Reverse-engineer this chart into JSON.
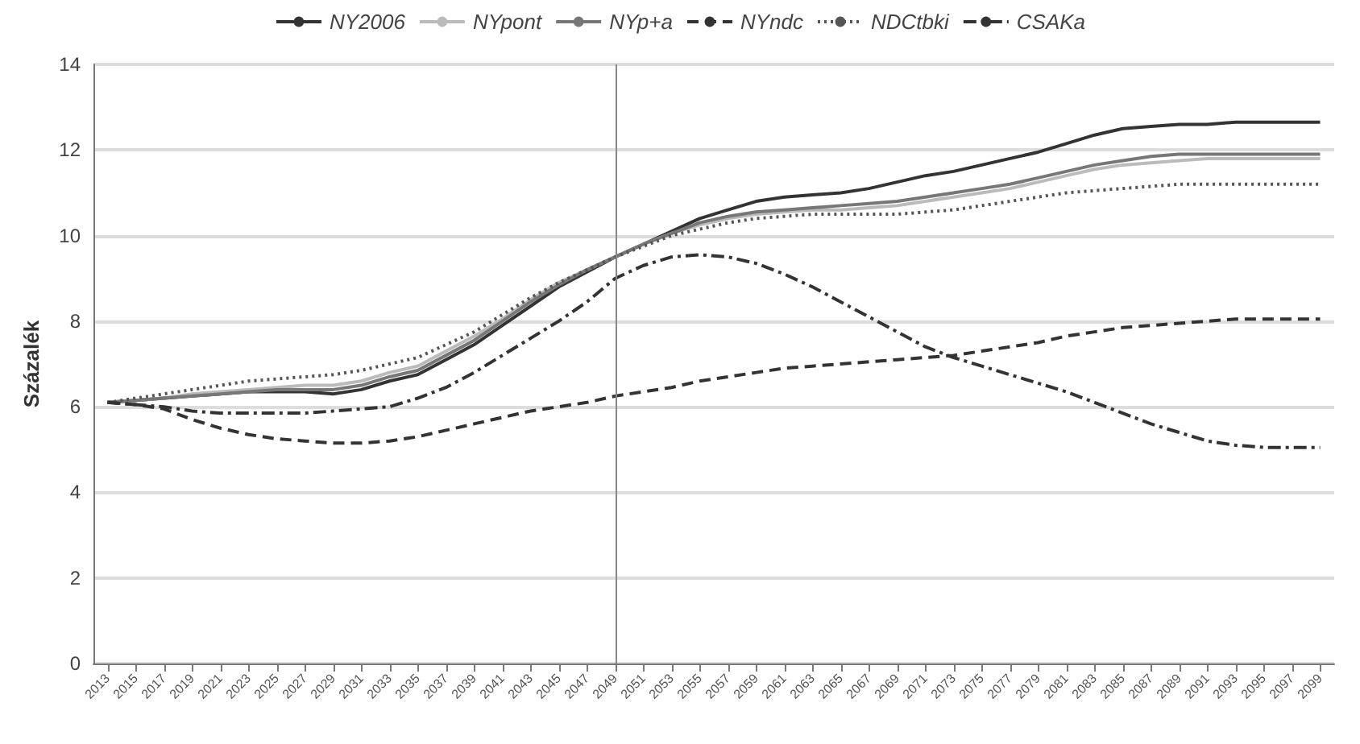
{
  "chart_data": {
    "type": "line",
    "ylabel": "Százalék",
    "ylim": [
      0,
      14
    ],
    "yticks": [
      0,
      2,
      4,
      6,
      8,
      10,
      12,
      14
    ],
    "grid": "y",
    "legend": "top",
    "marker": "none",
    "categories": [
      "2013",
      "2015",
      "2017",
      "2019",
      "2021",
      "2023",
      "2025",
      "2027",
      "2029",
      "2031",
      "2033",
      "2035",
      "2037",
      "2039",
      "2041",
      "2043",
      "2045",
      "2047",
      "2049",
      "2051",
      "2053",
      "2055",
      "2057",
      "2059",
      "2061",
      "2063",
      "2065",
      "2067",
      "2069",
      "2071",
      "2073",
      "2075",
      "2077",
      "2079",
      "2081",
      "2083",
      "2085",
      "2087",
      "2089",
      "2091",
      "2093",
      "2095",
      "2097",
      "2099"
    ],
    "ref_lines": [
      {
        "axis": "x",
        "value": "2049",
        "color": "#888888"
      }
    ],
    "series": [
      {
        "name": "NY2006",
        "color": "#333333",
        "line_style": "solid",
        "values": [
          6.1,
          6.15,
          6.2,
          6.25,
          6.3,
          6.35,
          6.35,
          6.35,
          6.3,
          6.4,
          6.6,
          6.75,
          7.1,
          7.45,
          7.9,
          8.35,
          8.8,
          9.15,
          9.5,
          9.8,
          10.1,
          10.4,
          10.6,
          10.8,
          10.9,
          10.95,
          11.0,
          11.1,
          11.25,
          11.4,
          11.5,
          11.65,
          11.8,
          11.95,
          12.15,
          12.35,
          12.5,
          12.55,
          12.6,
          12.6,
          12.65,
          12.65,
          12.65,
          12.65
        ]
      },
      {
        "name": "NYpont",
        "color": "#bbbbbb",
        "line_style": "solid",
        "values": [
          6.1,
          6.15,
          6.2,
          6.3,
          6.35,
          6.4,
          6.45,
          6.5,
          6.5,
          6.6,
          6.8,
          6.95,
          7.3,
          7.65,
          8.05,
          8.5,
          8.9,
          9.2,
          9.5,
          9.8,
          10.05,
          10.25,
          10.4,
          10.5,
          10.55,
          10.6,
          10.6,
          10.65,
          10.7,
          10.8,
          10.9,
          11.0,
          11.1,
          11.25,
          11.4,
          11.55,
          11.65,
          11.7,
          11.75,
          11.8,
          11.8,
          11.8,
          11.8,
          11.8
        ]
      },
      {
        "name": "NYp+a",
        "color": "#777777",
        "line_style": "solid",
        "values": [
          6.1,
          6.15,
          6.2,
          6.25,
          6.3,
          6.35,
          6.4,
          6.4,
          6.4,
          6.5,
          6.7,
          6.85,
          7.2,
          7.55,
          8.0,
          8.45,
          8.85,
          9.2,
          9.5,
          9.8,
          10.05,
          10.3,
          10.45,
          10.55,
          10.6,
          10.65,
          10.7,
          10.75,
          10.8,
          10.9,
          11.0,
          11.1,
          11.2,
          11.35,
          11.5,
          11.65,
          11.75,
          11.85,
          11.9,
          11.9,
          11.9,
          11.9,
          11.9,
          11.9
        ]
      },
      {
        "name": "NYndc",
        "color": "#333333",
        "line_style": "dashed",
        "values": [
          6.1,
          6.05,
          5.95,
          5.7,
          5.5,
          5.35,
          5.25,
          5.2,
          5.15,
          5.15,
          5.2,
          5.3,
          5.45,
          5.6,
          5.75,
          5.9,
          6.0,
          6.1,
          6.25,
          6.35,
          6.45,
          6.6,
          6.7,
          6.8,
          6.9,
          6.95,
          7.0,
          7.05,
          7.1,
          7.15,
          7.2,
          7.3,
          7.4,
          7.5,
          7.65,
          7.75,
          7.85,
          7.9,
          7.95,
          8.0,
          8.05,
          8.05,
          8.05,
          8.05
        ]
      },
      {
        "name": "NDCtbki",
        "color": "#555555",
        "line_style": "dotted",
        "values": [
          6.1,
          6.2,
          6.3,
          6.4,
          6.5,
          6.6,
          6.65,
          6.7,
          6.75,
          6.85,
          7.0,
          7.15,
          7.45,
          7.75,
          8.15,
          8.55,
          8.9,
          9.2,
          9.5,
          9.75,
          10.0,
          10.15,
          10.3,
          10.4,
          10.45,
          10.5,
          10.5,
          10.5,
          10.5,
          10.55,
          10.6,
          10.7,
          10.8,
          10.9,
          11.0,
          11.05,
          11.1,
          11.15,
          11.2,
          11.2,
          11.2,
          11.2,
          11.2,
          11.2
        ]
      },
      {
        "name": "CSAKa",
        "color": "#333333",
        "line_style": "dashdot",
        "values": [
          6.1,
          6.05,
          6.0,
          5.9,
          5.85,
          5.85,
          5.85,
          5.85,
          5.9,
          5.95,
          6.0,
          6.2,
          6.45,
          6.8,
          7.2,
          7.6,
          8.0,
          8.45,
          9.0,
          9.3,
          9.5,
          9.55,
          9.5,
          9.35,
          9.1,
          8.8,
          8.45,
          8.1,
          7.75,
          7.4,
          7.15,
          6.95,
          6.75,
          6.55,
          6.35,
          6.1,
          5.85,
          5.6,
          5.4,
          5.2,
          5.1,
          5.05,
          5.05,
          5.05
        ]
      }
    ]
  }
}
